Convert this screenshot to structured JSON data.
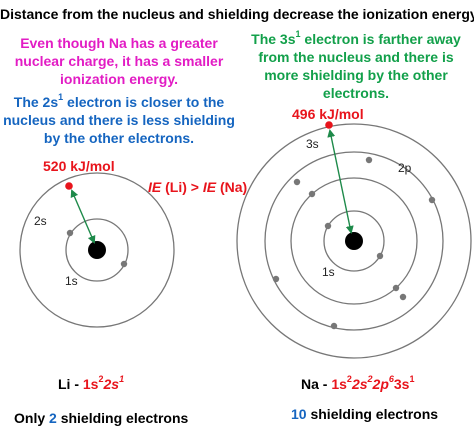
{
  "title": "Distance from the nucleus and shielding decrease the ionization energy",
  "notes": {
    "na_charge_1": "Even though Na has a greater",
    "na_charge_2": "nuclear charge, it has a smaller",
    "na_charge_3": "ionization energy.",
    "li_2s_1a": "The 2s",
    "li_2s_1sup": "1",
    "li_2s_1b": " electron is closer to the",
    "li_2s_2": "nucleus and there is less shielding",
    "li_2s_3": "by the other electrons.",
    "na_3s_1a": "The 3s",
    "na_3s_1sup": "1",
    "na_3s_1b": " electron is farther away",
    "na_3s_2": "from the nucleus and there is",
    "na_3s_3": "more shielding by the other",
    "na_3s_4": "electrons."
  },
  "li": {
    "energy": "520 kJ/mol",
    "shell_2s": "2s",
    "shell_1s": "1s",
    "config_prefix": "Li - ",
    "config": [
      {
        "orb": "1s",
        "sup": "2"
      },
      {
        "orb": "2s",
        "sup": "1"
      }
    ],
    "shield_a": "Only ",
    "shield_num": "2",
    "shield_b": " shielding electrons"
  },
  "na": {
    "energy": "496 kJ/mol",
    "shell_3s": "3s",
    "shell_2p": "2p",
    "shell_1s": "1s",
    "config_prefix": "Na - ",
    "config": [
      {
        "orb": "1s",
        "sup": "2"
      },
      {
        "orb": "2s",
        "sup": "2"
      },
      {
        "orb": "2p",
        "sup": "6"
      },
      {
        "orb": "3s",
        "sup": "1"
      }
    ],
    "shield_num": "10",
    "shield_b": " shielding electrons"
  },
  "comparison": {
    "ie_li": "IE",
    "li_par": " (Li) > ",
    "ie_na": "IE",
    "na_par": " (Na)"
  },
  "colors": {
    "pink": "#e21cc4",
    "blue": "#1565c0",
    "green": "#12a04a",
    "red": "#e8141c",
    "arrow": "#1e8a4a",
    "electron": "#777777",
    "nucleus": "#000000"
  }
}
